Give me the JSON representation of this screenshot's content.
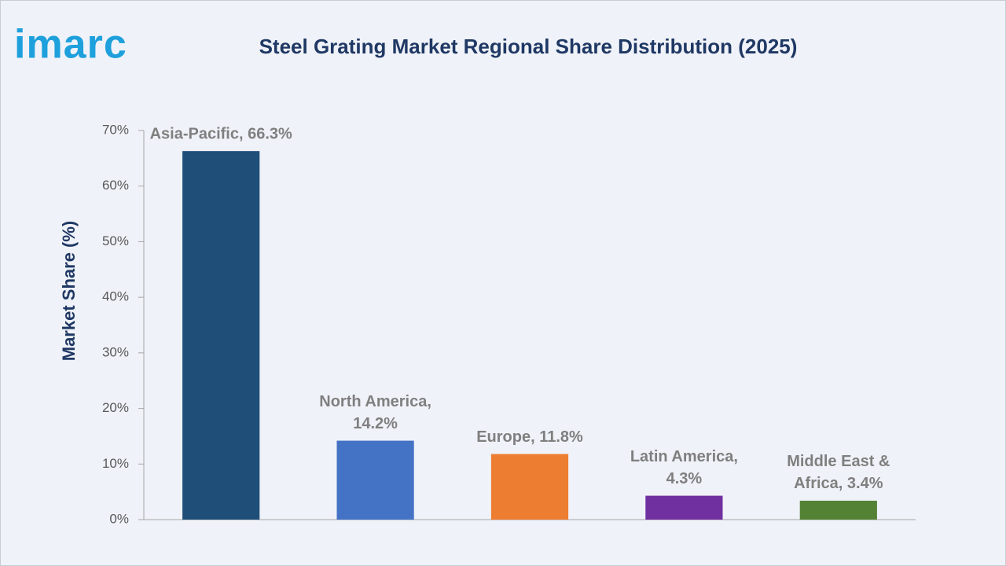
{
  "brand": "imarc",
  "chart_data": {
    "type": "bar",
    "title": "Steel Grating Market Regional Share Distribution (2025)",
    "y_label": "Market Share (%)",
    "categories": [
      "Asia-Pacific",
      "North America",
      "Europe",
      "Latin America",
      "Middle East & Africa"
    ],
    "values": [
      66.3,
      14.2,
      11.8,
      4.3,
      3.4
    ],
    "value_labels": [
      [
        "Asia-Pacific, 66.3%"
      ],
      [
        "North America,",
        "14.2%"
      ],
      [
        "Europe, 11.8%"
      ],
      [
        "Latin America,",
        "4.3%"
      ],
      [
        "Middle East &",
        "Africa, 3.4%"
      ]
    ],
    "colors": [
      "#1f4e79",
      "#4472c4",
      "#ed7d31",
      "#7030a0",
      "#548235"
    ],
    "ylim": [
      0,
      70
    ],
    "yticks": [
      {
        "value": 0,
        "label": "0%"
      },
      {
        "value": 10,
        "label": "10%"
      },
      {
        "value": 20,
        "label": "20%"
      },
      {
        "value": 30,
        "label": "30%"
      },
      {
        "value": 40,
        "label": "40%"
      },
      {
        "value": 50,
        "label": "50%"
      },
      {
        "value": 60,
        "label": "60%"
      },
      {
        "value": 70,
        "label": "70%"
      }
    ],
    "grid": false
  }
}
